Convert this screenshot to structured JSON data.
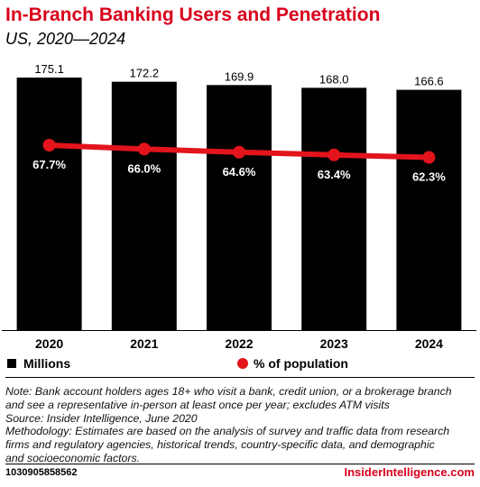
{
  "colors": {
    "title": "#d9001b",
    "bar": "#000000",
    "line": "#e3141c",
    "text": "#000000"
  },
  "legend": {
    "bars_label": "Millions",
    "line_label": "% of population"
  },
  "chart_data": {
    "type": "bar",
    "title": "In-Branch Banking Users and Penetration",
    "subtitle": "US, 2020—2024",
    "categories": [
      "2020",
      "2021",
      "2022",
      "2023",
      "2024"
    ],
    "series": [
      {
        "name": "Millions",
        "type": "bar",
        "values": [
          175.1,
          172.2,
          169.9,
          168.0,
          166.6
        ],
        "labels": [
          "175.1",
          "172.2",
          "169.9",
          "168.0",
          "166.6"
        ]
      },
      {
        "name": "% of population",
        "type": "line",
        "values": [
          67.7,
          66.0,
          64.6,
          63.4,
          62.3
        ],
        "labels": [
          "67.7%",
          "66.0%",
          "64.6%",
          "63.4%",
          "62.3%"
        ]
      }
    ],
    "ylim": [
      0,
      175.1
    ],
    "grid": false,
    "legend_position": "bottom"
  },
  "notes": {
    "lines": [
      "Note: Bank account holders ages 18+ who visit a bank, credit union, or a brokerage branch",
      "and see a representative in-person at least once per year; excludes ATM visits",
      "Source: Insider Intelligence, June 2020",
      "Methodology: Estimates are based on the analysis of survey and traffic data from research",
      "firms and regulatory agencies, historical trends, country-specific data, and demographic",
      "and socioeconomic factors."
    ]
  },
  "footer": {
    "id": "1030905858562",
    "brand": "InsiderIntelligence.com"
  }
}
